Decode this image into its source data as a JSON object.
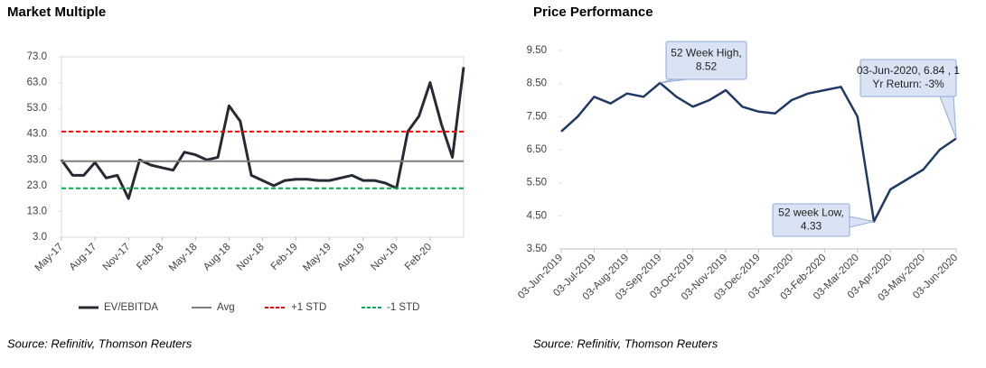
{
  "chart_data": [
    {
      "type": "line",
      "title": "Market Multiple",
      "categories": [
        "May-17",
        null,
        null,
        "Aug-17",
        null,
        null,
        "Nov-17",
        null,
        null,
        "Feb-18",
        null,
        null,
        "May-18",
        null,
        null,
        "Aug-18",
        null,
        null,
        "Nov-18",
        null,
        null,
        "Feb-19",
        null,
        null,
        "May-19",
        null,
        null,
        "Aug-19",
        null,
        null,
        "Nov-19",
        null,
        null,
        "Feb-20",
        null,
        null,
        null
      ],
      "series": [
        {
          "name": "EV/EBITDA",
          "color": "#262b33",
          "dashed": false,
          "values": [
            33,
            27,
            27,
            32,
            26,
            27,
            18,
            33,
            31,
            30,
            29,
            36,
            35,
            33,
            34,
            54,
            48,
            27,
            25,
            23,
            25,
            25.5,
            25.5,
            25,
            25,
            26,
            27,
            25,
            25,
            24,
            22,
            44,
            50,
            63,
            47,
            34,
            69
          ]
        },
        {
          "name": "Avg",
          "color": "#7f7f7f",
          "dashed": false,
          "values": [
            32.5,
            32.5,
            32.5,
            32.5,
            32.5,
            32.5,
            32.5,
            32.5,
            32.5,
            32.5,
            32.5,
            32.5,
            32.5,
            32.5,
            32.5,
            32.5,
            32.5,
            32.5,
            32.5,
            32.5,
            32.5,
            32.5,
            32.5,
            32.5,
            32.5,
            32.5,
            32.5,
            32.5,
            32.5,
            32.5,
            32.5,
            32.5,
            32.5,
            32.5,
            32.5,
            32.5,
            32.5
          ]
        },
        {
          "name": "+1 STD",
          "color": "#ff0000",
          "dashed": true,
          "values": [
            44,
            44,
            44,
            44,
            44,
            44,
            44,
            44,
            44,
            44,
            44,
            44,
            44,
            44,
            44,
            44,
            44,
            44,
            44,
            44,
            44,
            44,
            44,
            44,
            44,
            44,
            44,
            44,
            44,
            44,
            44,
            44,
            44,
            44,
            44,
            44,
            44
          ]
        },
        {
          "name": "-1 STD",
          "color": "#00b050",
          "dashed": true,
          "values": [
            22,
            22,
            22,
            22,
            22,
            22,
            22,
            22,
            22,
            22,
            22,
            22,
            22,
            22,
            22,
            22,
            22,
            22,
            22,
            22,
            22,
            22,
            22,
            22,
            22,
            22,
            22,
            22,
            22,
            22,
            22,
            22,
            22,
            22,
            22,
            22,
            22
          ]
        }
      ],
      "ylim": [
        3,
        73
      ],
      "yticks": [
        {
          "value": 3,
          "label": "3.0"
        },
        {
          "value": 13,
          "label": "13.0"
        },
        {
          "value": 23,
          "label": "23.0"
        },
        {
          "value": 33,
          "label": "33.0"
        },
        {
          "value": 43,
          "label": "43.0"
        },
        {
          "value": 53,
          "label": "53.0"
        },
        {
          "value": 63,
          "label": "63.0"
        },
        {
          "value": 73,
          "label": "73.0"
        }
      ],
      "legend": "bottom",
      "source": "Source: Refinitiv, Thomson Reuters"
    },
    {
      "type": "line",
      "title": "Price Performance",
      "categories": [
        "03-Jun-2019",
        null,
        "03-Jul-2019",
        null,
        "03-Aug-2019",
        null,
        "03-Sep-2019",
        null,
        "03-Oct-2019",
        null,
        "03-Nov-2019",
        null,
        "03-Dec-2019",
        null,
        "03-Jan-2020",
        null,
        "03-Feb-2020",
        null,
        "03-Mar-2020",
        null,
        "03-Apr-2020",
        null,
        "03-May-2020",
        null,
        "03-Jun-2020"
      ],
      "series": [
        {
          "name": "Price",
          "color": "#1f3864",
          "dashed": false,
          "values": [
            7.05,
            7.5,
            8.1,
            7.9,
            8.2,
            8.1,
            8.52,
            8.1,
            7.8,
            8.0,
            8.3,
            7.8,
            7.65,
            7.6,
            8.0,
            8.2,
            8.3,
            8.4,
            7.5,
            4.33,
            5.3,
            5.6,
            5.9,
            6.5,
            6.84
          ]
        }
      ],
      "ylim": [
        3.5,
        9.5
      ],
      "yticks": [
        {
          "value": 3.5,
          "label": "3.50"
        },
        {
          "value": 4.5,
          "label": "4.50"
        },
        {
          "value": 5.5,
          "label": "5.50"
        },
        {
          "value": 6.5,
          "label": "6.50"
        },
        {
          "value": 7.5,
          "label": "7.50"
        },
        {
          "value": 8.5,
          "label": "8.50"
        },
        {
          "value": 9.5,
          "label": "9.50"
        }
      ],
      "annotations": [
        {
          "lines": [
            "52 Week High,",
            "8.52"
          ]
        },
        {
          "lines": [
            "52 week Low,",
            "4.33"
          ]
        },
        {
          "lines": [
            "03-Jun-2020,  6.84 , 1",
            "Yr Return: -3%"
          ]
        }
      ],
      "source": "Source: Refinitiv, Thomson Reuters"
    }
  ]
}
